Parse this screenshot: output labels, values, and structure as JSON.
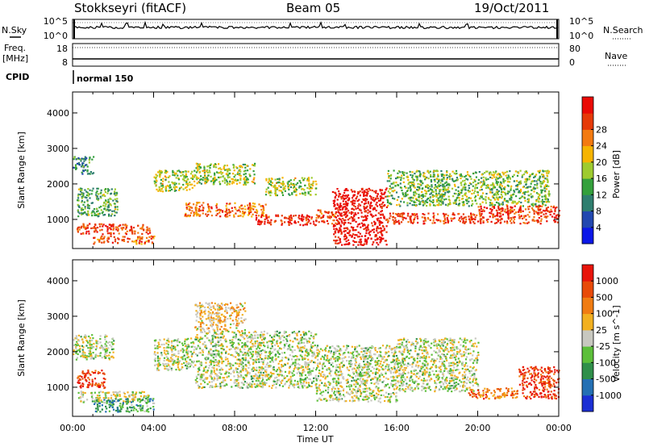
{
  "header": {
    "station": "Stokkseyri (fitACF)",
    "beam": "Beam 05",
    "date": "19/Oct/2011"
  },
  "noise_panel": {
    "left_label": "N.Sky",
    "right_label": "N.Search",
    "ticks_left": [
      "10^5",
      "10^0"
    ],
    "ticks_right": [
      "10^5",
      "10^0"
    ]
  },
  "freq_panel": {
    "left_label_1": "Freq.",
    "left_label_2": "[MHz]",
    "right_label": "Nave",
    "ticks_left": [
      "18",
      "8"
    ],
    "ticks_right": [
      "80",
      "0"
    ]
  },
  "cpid": {
    "label": "CPID",
    "value": "normal 150"
  },
  "axes": {
    "ylabel": "Slant Range [km]",
    "xlabel": "Time UT",
    "y_ticks": [
      "1000",
      "2000",
      "3000",
      "4000"
    ],
    "x_ticks": [
      "00:00",
      "04:00",
      "08:00",
      "12:00",
      "16:00",
      "20:00",
      "00:00"
    ]
  },
  "chart_data": [
    {
      "type": "heatmap",
      "title": "",
      "quantity_label": "Power [dB]",
      "xlabel": "Time UT",
      "ylabel": "Slant Range [km]",
      "xlim_hours": [
        0,
        24
      ],
      "ylim": [
        180,
        4590
      ],
      "colorbar": {
        "ticks": [
          "4",
          "8",
          "12",
          "16",
          "20",
          "24",
          "28"
        ],
        "colors": [
          "#0b17e8",
          "#2248b0",
          "#2f7e6f",
          "#34a03c",
          "#9ecb2f",
          "#f6b400",
          "#f37a10",
          "#e63a08",
          "#ea0a05"
        ]
      },
      "bands": [
        {
          "t0": 0.2,
          "t1": 3.8,
          "r0": 600,
          "r1": 900,
          "level": 0.85
        },
        {
          "t0": 1.0,
          "t1": 4.0,
          "r0": 330,
          "r1": 550,
          "level": 0.8
        },
        {
          "t0": 0.2,
          "t1": 2.2,
          "r0": 1100,
          "r1": 1900,
          "level": 0.4
        },
        {
          "t0": 0.0,
          "t1": 1.0,
          "r0": 2300,
          "r1": 2800,
          "level": 0.3
        },
        {
          "t0": 4.0,
          "t1": 6.0,
          "r0": 1800,
          "r1": 2400,
          "level": 0.5
        },
        {
          "t0": 5.5,
          "t1": 9.5,
          "r0": 1100,
          "r1": 1500,
          "level": 0.75
        },
        {
          "t0": 6.0,
          "t1": 9.0,
          "r0": 2000,
          "r1": 2600,
          "level": 0.5
        },
        {
          "t0": 9.0,
          "t1": 12.0,
          "r0": 850,
          "r1": 1150,
          "level": 0.9
        },
        {
          "t0": 9.5,
          "t1": 12.0,
          "r0": 1700,
          "r1": 2200,
          "level": 0.5
        },
        {
          "t0": 12.0,
          "t1": 13.0,
          "r0": 900,
          "r1": 1300,
          "level": 0.8
        },
        {
          "t0": 12.8,
          "t1": 15.5,
          "r0": 300,
          "r1": 1900,
          "level": 0.98
        },
        {
          "t0": 15.5,
          "t1": 20.0,
          "r0": 900,
          "r1": 1200,
          "level": 0.85
        },
        {
          "t0": 15.5,
          "t1": 23.5,
          "r0": 1400,
          "r1": 2400,
          "level": 0.45
        },
        {
          "t0": 20.0,
          "t1": 24.0,
          "r0": 900,
          "r1": 1400,
          "level": 0.85
        }
      ]
    },
    {
      "type": "heatmap",
      "title": "",
      "quantity_label": "Velocity [m s^-1]",
      "xlabel": "Time UT",
      "ylabel": "Slant Range [km]",
      "xlim_hours": [
        0,
        24
      ],
      "ylim": [
        180,
        4590
      ],
      "colorbar": {
        "ticks": [
          "1000",
          "500",
          "100",
          "25",
          "-25",
          "-100",
          "-500",
          "-1000"
        ],
        "colors": [
          "#1b2fd4",
          "#2470b4",
          "#2f8f4a",
          "#5cbf3a",
          "#c8c8c0",
          "#f2b020",
          "#f07c12",
          "#e84a08",
          "#e8140a"
        ]
      },
      "bands": [
        {
          "t0": 0.2,
          "t1": 1.6,
          "r0": 1000,
          "r1": 1500,
          "level": 0.85
        },
        {
          "t0": 0.2,
          "t1": 3.8,
          "r0": 600,
          "r1": 900,
          "level": 0.48
        },
        {
          "t0": 1.0,
          "t1": 4.0,
          "r0": 330,
          "r1": 700,
          "level": 0.3
        },
        {
          "t0": 0.0,
          "t1": 2.0,
          "r0": 1800,
          "r1": 2500,
          "level": 0.48
        },
        {
          "t0": 4.0,
          "t1": 6.0,
          "r0": 1500,
          "r1": 2400,
          "level": 0.48
        },
        {
          "t0": 6.0,
          "t1": 8.5,
          "r0": 2600,
          "r1": 3400,
          "level": 0.6
        },
        {
          "t0": 6.0,
          "t1": 12.0,
          "r0": 1000,
          "r1": 2600,
          "level": 0.48
        },
        {
          "t0": 12.0,
          "t1": 16.0,
          "r0": 600,
          "r1": 2200,
          "level": 0.48
        },
        {
          "t0": 16.0,
          "t1": 20.0,
          "r0": 900,
          "r1": 2400,
          "level": 0.48
        },
        {
          "t0": 19.5,
          "t1": 22.0,
          "r0": 700,
          "r1": 1000,
          "level": 0.75
        },
        {
          "t0": 22.0,
          "t1": 24.0,
          "r0": 700,
          "r1": 1600,
          "level": 0.9
        }
      ]
    }
  ]
}
